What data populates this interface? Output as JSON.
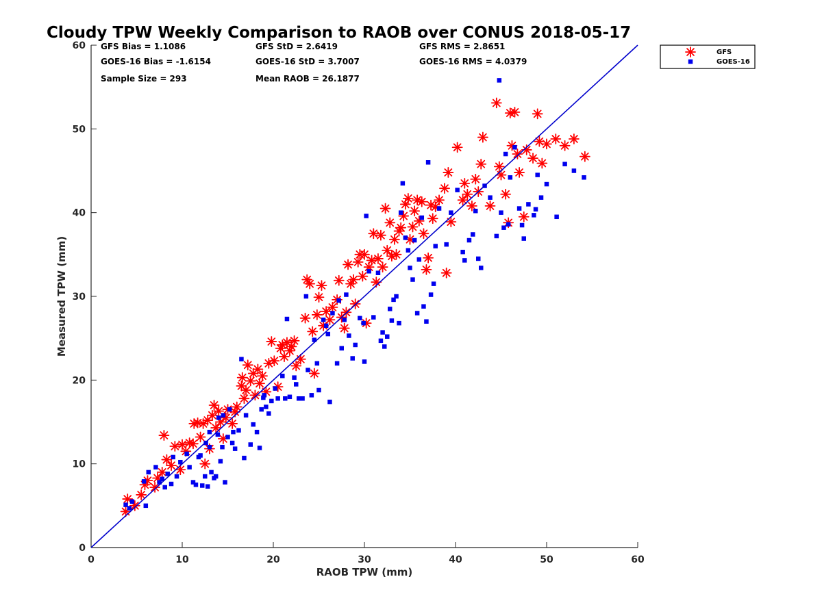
{
  "chart_data": {
    "type": "scatter",
    "title": "Cloudy TPW Weekly Comparison to RAOB over CONUS 2018-05-17",
    "xlabel": "RAOB TPW (mm)",
    "ylabel": "Measured TPW (mm)",
    "xlim": [
      0,
      60
    ],
    "ylim": [
      0,
      60
    ],
    "xticks": [
      "0",
      "10",
      "20",
      "30",
      "40",
      "50",
      "60"
    ],
    "yticks": [
      "0",
      "10",
      "20",
      "30",
      "40",
      "50",
      "60"
    ],
    "grid": false,
    "legend_position": "outside-top-right",
    "stats": [
      [
        "GFS Bias = 1.1086",
        "GFS StD = 2.6419",
        "GFS RMS = 2.8651"
      ],
      [
        "GOES-16 Bias = -1.6154",
        "GOES-16 StD = 3.7007",
        "GOES-16 RMS = 4.0379"
      ],
      [
        "Sample Size = 293",
        "Mean RAOB = 26.1877",
        ""
      ]
    ],
    "reference_line": {
      "x": [
        0,
        60
      ],
      "y": [
        0,
        60
      ],
      "color": "#0000cc"
    },
    "series": [
      {
        "name": "GFS",
        "color": "#ff0000",
        "marker": "asterisk",
        "points": [
          [
            3.8,
            4.3
          ],
          [
            4.0,
            5.8
          ],
          [
            4.8,
            5.0
          ],
          [
            5.5,
            6.3
          ],
          [
            5.9,
            7.5
          ],
          [
            6.2,
            8.0
          ],
          [
            7.0,
            7.2
          ],
          [
            7.3,
            8.3
          ],
          [
            7.8,
            9.0
          ],
          [
            8.0,
            13.4
          ],
          [
            8.3,
            10.5
          ],
          [
            8.8,
            9.8
          ],
          [
            9.2,
            12.1
          ],
          [
            9.8,
            9.3
          ],
          [
            10.0,
            12.3
          ],
          [
            10.4,
            11.5
          ],
          [
            10.8,
            12.5
          ],
          [
            11.2,
            12.4
          ],
          [
            11.3,
            14.8
          ],
          [
            11.7,
            14.9
          ],
          [
            12.0,
            13.2
          ],
          [
            12.3,
            14.8
          ],
          [
            12.5,
            10.0
          ],
          [
            12.8,
            15.2
          ],
          [
            13.0,
            11.8
          ],
          [
            13.3,
            15.8
          ],
          [
            13.5,
            17.0
          ],
          [
            13.7,
            14.3
          ],
          [
            14.0,
            16.3
          ],
          [
            14.2,
            15.0
          ],
          [
            14.5,
            13.0
          ],
          [
            14.8,
            15.5
          ],
          [
            15.0,
            16.5
          ],
          [
            15.5,
            14.8
          ],
          [
            15.8,
            16.2
          ],
          [
            16.0,
            16.8
          ],
          [
            16.5,
            19.3
          ],
          [
            16.6,
            20.3
          ],
          [
            16.8,
            17.8
          ],
          [
            17.0,
            18.8
          ],
          [
            17.2,
            21.8
          ],
          [
            17.5,
            19.9
          ],
          [
            17.8,
            20.8
          ],
          [
            18.0,
            18.2
          ],
          [
            18.3,
            21.3
          ],
          [
            18.5,
            19.6
          ],
          [
            18.8,
            20.5
          ],
          [
            19.2,
            18.6
          ],
          [
            19.5,
            22.0
          ],
          [
            19.8,
            24.6
          ],
          [
            20.1,
            22.3
          ],
          [
            20.5,
            19.2
          ],
          [
            20.8,
            23.8
          ],
          [
            21.0,
            24.2
          ],
          [
            21.2,
            22.8
          ],
          [
            21.5,
            24.5
          ],
          [
            21.8,
            23.5
          ],
          [
            22.0,
            24.0
          ],
          [
            22.3,
            24.7
          ],
          [
            22.5,
            21.7
          ],
          [
            23.0,
            22.5
          ],
          [
            23.5,
            27.4
          ],
          [
            23.7,
            32.0
          ],
          [
            24.0,
            31.5
          ],
          [
            24.3,
            25.8
          ],
          [
            24.5,
            20.8
          ],
          [
            24.8,
            27.8
          ],
          [
            25.0,
            29.9
          ],
          [
            25.3,
            31.3
          ],
          [
            25.5,
            26.5
          ],
          [
            25.8,
            28.2
          ],
          [
            26.2,
            27.2
          ],
          [
            26.5,
            28.7
          ],
          [
            27.0,
            29.6
          ],
          [
            27.2,
            31.9
          ],
          [
            27.5,
            27.5
          ],
          [
            27.8,
            26.2
          ],
          [
            28.0,
            28.1
          ],
          [
            28.2,
            33.8
          ],
          [
            28.5,
            31.5
          ],
          [
            28.8,
            32.0
          ],
          [
            29.0,
            29.1
          ],
          [
            29.3,
            34.1
          ],
          [
            29.5,
            35.0
          ],
          [
            29.8,
            32.4
          ],
          [
            30.0,
            35.0
          ],
          [
            30.2,
            26.8
          ],
          [
            30.5,
            33.5
          ],
          [
            30.8,
            34.3
          ],
          [
            31.0,
            37.5
          ],
          [
            31.3,
            31.7
          ],
          [
            31.5,
            34.5
          ],
          [
            31.8,
            37.3
          ],
          [
            32.0,
            33.5
          ],
          [
            32.3,
            40.5
          ],
          [
            32.5,
            35.5
          ],
          [
            32.8,
            38.8
          ],
          [
            33.0,
            34.8
          ],
          [
            33.3,
            36.8
          ],
          [
            33.5,
            35.0
          ],
          [
            33.8,
            37.8
          ],
          [
            34.0,
            38.2
          ],
          [
            34.3,
            39.6
          ],
          [
            34.5,
            41.0
          ],
          [
            34.8,
            41.7
          ],
          [
            35.0,
            36.8
          ],
          [
            35.3,
            38.3
          ],
          [
            35.5,
            40.2
          ],
          [
            35.8,
            41.5
          ],
          [
            36.0,
            39.0
          ],
          [
            36.3,
            41.3
          ],
          [
            36.5,
            37.5
          ],
          [
            36.8,
            33.2
          ],
          [
            37.0,
            34.6
          ],
          [
            37.3,
            40.9
          ],
          [
            37.5,
            39.3
          ],
          [
            37.8,
            40.7
          ],
          [
            38.2,
            41.5
          ],
          [
            38.8,
            42.9
          ],
          [
            39.0,
            32.8
          ],
          [
            39.2,
            44.8
          ],
          [
            39.5,
            38.9
          ],
          [
            40.2,
            47.8
          ],
          [
            40.8,
            41.5
          ],
          [
            41.0,
            43.5
          ],
          [
            41.3,
            42.2
          ],
          [
            41.8,
            40.8
          ],
          [
            42.2,
            44.0
          ],
          [
            42.5,
            42.5
          ],
          [
            42.8,
            45.8
          ],
          [
            43.0,
            49.0
          ],
          [
            43.8,
            40.8
          ],
          [
            44.5,
            53.1
          ],
          [
            44.8,
            45.5
          ],
          [
            45.0,
            44.5
          ],
          [
            45.5,
            42.2
          ],
          [
            45.8,
            38.8
          ],
          [
            46.0,
            51.9
          ],
          [
            46.2,
            48.0
          ],
          [
            46.5,
            52.0
          ],
          [
            46.8,
            47.0
          ],
          [
            47.0,
            44.8
          ],
          [
            47.5,
            39.5
          ],
          [
            47.8,
            47.5
          ],
          [
            48.5,
            46.5
          ],
          [
            49.0,
            51.8
          ],
          [
            49.2,
            48.5
          ],
          [
            49.5,
            45.9
          ],
          [
            50.0,
            48.2
          ],
          [
            51.0,
            48.8
          ],
          [
            52.0,
            48.0
          ],
          [
            53.0,
            48.8
          ],
          [
            54.2,
            46.7
          ]
        ]
      },
      {
        "name": "GOES-16",
        "color": "#0000ee",
        "marker": "square",
        "points": [
          [
            3.8,
            5.1
          ],
          [
            4.2,
            4.7
          ],
          [
            4.5,
            5.5
          ],
          [
            5.8,
            7.9
          ],
          [
            6.0,
            5.0
          ],
          [
            6.3,
            9.0
          ],
          [
            7.1,
            9.6
          ],
          [
            7.5,
            7.8
          ],
          [
            7.8,
            8.2
          ],
          [
            8.1,
            7.2
          ],
          [
            8.4,
            8.8
          ],
          [
            8.8,
            7.6
          ],
          [
            9.0,
            10.8
          ],
          [
            9.4,
            8.5
          ],
          [
            9.8,
            10.2
          ],
          [
            10.5,
            11.2
          ],
          [
            10.8,
            9.6
          ],
          [
            11.2,
            7.8
          ],
          [
            11.5,
            7.5
          ],
          [
            11.8,
            10.8
          ],
          [
            12.2,
            7.4
          ],
          [
            12.5,
            8.5
          ],
          [
            12.8,
            7.3
          ],
          [
            12.6,
            12.5
          ],
          [
            13.0,
            13.8
          ],
          [
            13.2,
            9.0
          ],
          [
            13.5,
            8.3
          ],
          [
            13.7,
            8.5
          ],
          [
            13.9,
            13.5
          ],
          [
            14.2,
            10.3
          ],
          [
            14.4,
            12.0
          ],
          [
            14.5,
            15.8
          ],
          [
            14.7,
            7.8
          ],
          [
            15.0,
            13.2
          ],
          [
            15.2,
            16.5
          ],
          [
            15.5,
            12.5
          ],
          [
            15.8,
            11.8
          ],
          [
            16.2,
            14.0
          ],
          [
            16.5,
            22.5
          ],
          [
            16.8,
            10.7
          ],
          [
            17.0,
            15.8
          ],
          [
            17.5,
            12.3
          ],
          [
            17.8,
            14.7
          ],
          [
            18.2,
            13.8
          ],
          [
            18.5,
            11.9
          ],
          [
            18.7,
            16.5
          ],
          [
            19.0,
            18.2
          ],
          [
            19.5,
            16.0
          ],
          [
            19.8,
            17.5
          ],
          [
            20.2,
            19.0
          ],
          [
            20.5,
            17.8
          ],
          [
            21.0,
            20.5
          ],
          [
            21.5,
            27.3
          ],
          [
            21.8,
            18.0
          ],
          [
            22.3,
            20.3
          ],
          [
            22.5,
            19.5
          ],
          [
            22.8,
            17.8
          ],
          [
            23.2,
            17.8
          ],
          [
            23.6,
            30.0
          ],
          [
            23.8,
            21.2
          ],
          [
            24.2,
            18.2
          ],
          [
            24.5,
            24.8
          ],
          [
            24.8,
            22.0
          ],
          [
            25.0,
            18.8
          ],
          [
            25.5,
            27.2
          ],
          [
            25.8,
            26.5
          ],
          [
            26.0,
            25.5
          ],
          [
            26.2,
            17.4
          ],
          [
            26.5,
            28.0
          ],
          [
            27.0,
            22.0
          ],
          [
            27.5,
            23.8
          ],
          [
            27.8,
            27.2
          ],
          [
            28.0,
            30.2
          ],
          [
            28.3,
            25.3
          ],
          [
            28.7,
            22.6
          ],
          [
            29.0,
            24.2
          ],
          [
            29.5,
            27.4
          ],
          [
            30.0,
            22.2
          ],
          [
            30.2,
            39.6
          ],
          [
            30.5,
            33.0
          ],
          [
            31.0,
            27.5
          ],
          [
            31.5,
            32.8
          ],
          [
            32.0,
            25.7
          ],
          [
            32.2,
            24.0
          ],
          [
            32.5,
            25.2
          ],
          [
            32.8,
            28.5
          ],
          [
            33.0,
            27.1
          ],
          [
            33.2,
            29.6
          ],
          [
            33.5,
            30.0
          ],
          [
            33.8,
            26.8
          ],
          [
            34.0,
            40.0
          ],
          [
            34.2,
            43.5
          ],
          [
            34.5,
            37.0
          ],
          [
            34.8,
            35.5
          ],
          [
            35.0,
            33.4
          ],
          [
            35.3,
            32.0
          ],
          [
            35.5,
            36.7
          ],
          [
            35.8,
            28.0
          ],
          [
            36.0,
            34.4
          ],
          [
            36.3,
            39.4
          ],
          [
            36.5,
            28.8
          ],
          [
            36.8,
            27.0
          ],
          [
            37.0,
            46.0
          ],
          [
            37.3,
            30.2
          ],
          [
            37.6,
            31.5
          ],
          [
            37.8,
            36.0
          ],
          [
            38.2,
            40.5
          ],
          [
            39.0,
            36.2
          ],
          [
            39.5,
            40.0
          ],
          [
            40.2,
            42.7
          ],
          [
            40.8,
            35.3
          ],
          [
            41.0,
            34.3
          ],
          [
            41.5,
            36.7
          ],
          [
            41.9,
            37.4
          ],
          [
            42.2,
            40.2
          ],
          [
            42.5,
            34.5
          ],
          [
            42.8,
            33.4
          ],
          [
            43.2,
            43.2
          ],
          [
            43.8,
            41.8
          ],
          [
            44.5,
            37.2
          ],
          [
            44.8,
            55.8
          ],
          [
            45.0,
            40.0
          ],
          [
            45.3,
            38.2
          ],
          [
            45.8,
            38.6
          ],
          [
            46.0,
            44.2
          ],
          [
            46.5,
            47.8
          ],
          [
            47.0,
            40.5
          ],
          [
            47.3,
            38.5
          ],
          [
            47.5,
            36.9
          ],
          [
            48.0,
            41.0
          ],
          [
            48.6,
            39.7
          ],
          [
            49.0,
            44.5
          ],
          [
            49.4,
            41.8
          ],
          [
            50.0,
            43.4
          ],
          [
            51.1,
            39.5
          ],
          [
            52.0,
            45.8
          ],
          [
            53.0,
            45.0
          ],
          [
            54.1,
            44.2
          ],
          [
            45.5,
            47.0
          ],
          [
            48.8,
            40.4
          ],
          [
            29.9,
            26.8
          ],
          [
            31.8,
            24.7
          ],
          [
            18.9,
            17.9
          ],
          [
            19.2,
            16.8
          ],
          [
            21.3,
            17.8
          ],
          [
            13.0,
            12.0
          ],
          [
            14.0,
            15.5
          ],
          [
            15.6,
            13.8
          ],
          [
            12.0,
            11.0
          ],
          [
            27.2,
            29.5
          ]
        ]
      }
    ]
  }
}
